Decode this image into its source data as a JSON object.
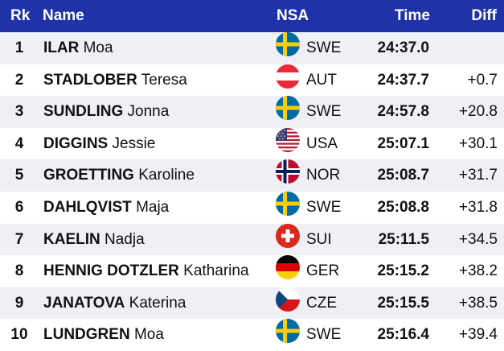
{
  "header": {
    "rk": "Rk",
    "name": "Name",
    "nsa": "NSA",
    "time": "Time",
    "diff": "Diff"
  },
  "rows": [
    {
      "rk": "1",
      "last": "ILAR",
      "first": "Moa",
      "nsa": "SWE",
      "time": "24:37.0",
      "diff": "",
      "flag": "sweden-flag-icon"
    },
    {
      "rk": "2",
      "last": "STADLOBER",
      "first": "Teresa",
      "nsa": "AUT",
      "time": "24:37.7",
      "diff": "+0.7",
      "flag": "austria-flag-icon"
    },
    {
      "rk": "3",
      "last": "SUNDLING",
      "first": "Jonna",
      "nsa": "SWE",
      "time": "24:57.8",
      "diff": "+20.8",
      "flag": "sweden-flag-icon"
    },
    {
      "rk": "4",
      "last": "DIGGINS",
      "first": "Jessie",
      "nsa": "USA",
      "time": "25:07.1",
      "diff": "+30.1",
      "flag": "usa-flag-icon"
    },
    {
      "rk": "5",
      "last": "GROETTING",
      "first": "Karoline",
      "nsa": "NOR",
      "time": "25:08.7",
      "diff": "+31.7",
      "flag": "norway-flag-icon"
    },
    {
      "rk": "6",
      "last": "DAHLQVIST",
      "first": "Maja",
      "nsa": "SWE",
      "time": "25:08.8",
      "diff": "+31.8",
      "flag": "sweden-flag-icon"
    },
    {
      "rk": "7",
      "last": "KAELIN",
      "first": "Nadja",
      "nsa": "SUI",
      "time": "25:11.5",
      "diff": "+34.5",
      "flag": "switzerland-flag-icon"
    },
    {
      "rk": "8",
      "last": "HENNIG DOTZLER",
      "first": "Katharina",
      "nsa": "GER",
      "time": "25:15.2",
      "diff": "+38.2",
      "flag": "germany-flag-icon"
    },
    {
      "rk": "9",
      "last": "JANATOVA",
      "first": "Katerina",
      "nsa": "CZE",
      "time": "25:15.5",
      "diff": "+38.5",
      "flag": "czech-flag-icon"
    },
    {
      "rk": "10",
      "last": "LUNDGREN",
      "first": "Moa",
      "nsa": "SWE",
      "time": "25:16.4",
      "diff": "+39.4",
      "flag": "sweden-flag-icon"
    }
  ],
  "colors": {
    "header_bg": "#1e33a8",
    "row_alt_bg": "#eef0f6"
  }
}
